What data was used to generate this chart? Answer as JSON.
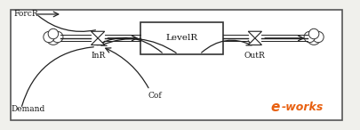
{
  "bg_color": "#f0f0ec",
  "border_color": "#555555",
  "box_edge_color": "#333333",
  "flow_color": "#222222",
  "text_color": "#111111",
  "levelR_label": "LevelR",
  "inR_label": "InR",
  "outR_label": "OutR",
  "forcR_label": "ForcR",
  "demand_label": "Demand",
  "cof_label": "Cof",
  "eworks_e": "e",
  "eworks_rest": "-works",
  "eworks_color": "#e86010",
  "fig_width": 4.05,
  "fig_height": 1.46,
  "dpi": 100,
  "xlim": [
    0,
    10
  ],
  "ylim": [
    0,
    3.6
  ]
}
